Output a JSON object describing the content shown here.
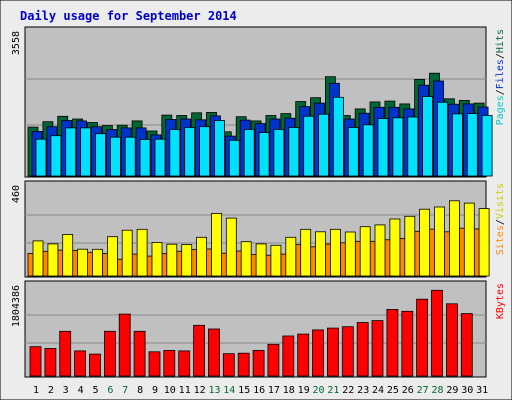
{
  "colors": {
    "background": "#ECECEC",
    "plot_bg": "#C0C0C0",
    "border": "#000000",
    "title": "#0000CC",
    "grid": "#8A8A8A",
    "hits": "#006633",
    "files": "#0033CC",
    "pages": "#00E0FF",
    "visits": "#FF8800",
    "sites": "#FFFF00",
    "kbytes": "#FF0000",
    "weekend_day": "#006633",
    "week_day": "#000000"
  },
  "chart_data": [
    {
      "type": "bar",
      "title": "Daily usage for September 2014",
      "y_max_label": "3558",
      "ylim": [
        0,
        3558
      ],
      "legend": [
        {
          "label": "Pages",
          "color": "#00CCCC"
        },
        {
          "label": "Files",
          "color": "#0033CC"
        },
        {
          "label": "Hits",
          "color": "#006633"
        }
      ],
      "categories": [
        "1",
        "2",
        "3",
        "4",
        "5",
        "6",
        "7",
        "8",
        "9",
        "10",
        "11",
        "12",
        "13",
        "14",
        "15",
        "16",
        "17",
        "18",
        "19",
        "20",
        "21",
        "22",
        "23",
        "24",
        "25",
        "26",
        "27",
        "28",
        "29",
        "30",
        "31"
      ],
      "weekend_days": [
        "6",
        "7",
        "13",
        "14",
        "20",
        "21",
        "27",
        "28"
      ],
      "series": [
        {
          "name": "Hits",
          "values": [
            1260,
            1400,
            1540,
            1470,
            1380,
            1300,
            1310,
            1420,
            1160,
            1570,
            1560,
            1630,
            1640,
            1140,
            1530,
            1420,
            1560,
            1610,
            1920,
            2020,
            2560,
            1560,
            1730,
            1910,
            1930,
            1860,
            2490,
            2650,
            1990,
            1950,
            1880
          ]
        },
        {
          "name": "Files",
          "values": [
            1150,
            1270,
            1430,
            1420,
            1270,
            1200,
            1240,
            1240,
            1060,
            1460,
            1470,
            1450,
            1550,
            1030,
            1440,
            1350,
            1470,
            1490,
            1790,
            1880,
            2390,
            1470,
            1620,
            1770,
            1770,
            1730,
            2340,
            2450,
            1850,
            1860,
            1780
          ]
        },
        {
          "name": "Pages",
          "values": [
            950,
            1040,
            1240,
            1240,
            1090,
            1000,
            1000,
            940,
            950,
            1200,
            1250,
            1270,
            1430,
            920,
            1200,
            1120,
            1200,
            1250,
            1540,
            1590,
            2030,
            1250,
            1320,
            1480,
            1500,
            1520,
            2050,
            1900,
            1600,
            1610,
            1560
          ]
        }
      ]
    },
    {
      "type": "bar",
      "y_max_label": "460",
      "ylim": [
        0,
        460
      ],
      "legend": [
        {
          "label": "Sites",
          "color": "#FF8800"
        },
        {
          "label": "Visits",
          "color": "#CCCC00"
        }
      ],
      "categories": [
        "1",
        "2",
        "3",
        "4",
        "5",
        "6",
        "7",
        "8",
        "9",
        "10",
        "11",
        "12",
        "13",
        "14",
        "15",
        "16",
        "17",
        "18",
        "19",
        "20",
        "21",
        "22",
        "23",
        "24",
        "25",
        "26",
        "27",
        "28",
        "29",
        "30",
        "31"
      ],
      "series": [
        {
          "name": "Visits",
          "values": [
            123,
            135,
            142,
            140,
            130,
            124,
            92,
            120,
            109,
            122,
            135,
            145,
            148,
            125,
            137,
            118,
            114,
            120,
            172,
            160,
            175,
            182,
            190,
            190,
            198,
            206,
            245,
            257,
            242,
            262,
            258
          ]
        },
        {
          "name": "Sites",
          "values": [
            192,
            176,
            228,
            147,
            146,
            215,
            251,
            256,
            184,
            174,
            172,
            212,
            343,
            317,
            188,
            176,
            168,
            212,
            256,
            242,
            256,
            241,
            270,
            280,
            312,
            327,
            366,
            378,
            412,
            399,
            369
          ]
        }
      ]
    },
    {
      "type": "bar",
      "y_max_label": "1804386",
      "ylim": [
        0,
        1804386
      ],
      "legend": [
        {
          "label": "KBytes",
          "color": "#FF0000"
        }
      ],
      "categories": [
        "1",
        "2",
        "3",
        "4",
        "5",
        "6",
        "7",
        "8",
        "9",
        "10",
        "11",
        "12",
        "13",
        "14",
        "15",
        "16",
        "17",
        "18",
        "19",
        "20",
        "21",
        "22",
        "23",
        "24",
        "25",
        "26",
        "27",
        "28",
        "29",
        "30",
        "31"
      ],
      "series": [
        {
          "name": "KBytes",
          "values": [
            630000,
            590000,
            960000,
            540000,
            470000,
            960000,
            1330000,
            960000,
            520000,
            550000,
            540000,
            1090000,
            1010000,
            480000,
            490000,
            550000,
            680000,
            860000,
            900000,
            990000,
            1030000,
            1060000,
            1150000,
            1190000,
            1430000,
            1390000,
            1650000,
            1840000,
            1550000,
            1340000,
            0
          ]
        }
      ]
    }
  ]
}
